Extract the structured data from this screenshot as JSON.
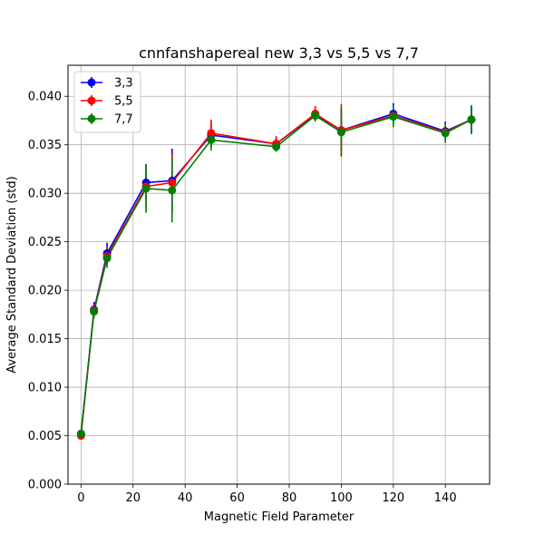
{
  "chart_data": {
    "type": "line",
    "title": "cnnfanshapereal new 3,3 vs 5,5 vs 7,7",
    "xlabel": "Magnetic Field Parameter",
    "ylabel": "Average Standard Deviation (std)",
    "xlim": [
      -5,
      157
    ],
    "ylim": [
      0.0,
      0.0432
    ],
    "x_ticks": [
      0,
      20,
      40,
      60,
      80,
      100,
      120,
      140
    ],
    "x_tick_labels": [
      "0",
      "20",
      "40",
      "60",
      "80",
      "100",
      "120",
      "140"
    ],
    "y_ticks": [
      0.0,
      0.005,
      0.01,
      0.015,
      0.02,
      0.025,
      0.03,
      0.035,
      0.04
    ],
    "y_tick_labels": [
      "0.000",
      "0.005",
      "0.010",
      "0.015",
      "0.020",
      "0.025",
      "0.030",
      "0.035",
      "0.040"
    ],
    "grid": true,
    "legend_position": "upper-left",
    "x": [
      0,
      5,
      10,
      25,
      35,
      50,
      75,
      90,
      100,
      120,
      140,
      150
    ],
    "series": [
      {
        "name": "3,3",
        "color": "#0000ff",
        "values": [
          0.0052,
          0.018,
          0.0238,
          0.0311,
          0.0313,
          0.036,
          0.0351,
          0.0381,
          0.0365,
          0.0382,
          0.0364,
          0.0376
        ],
        "errors": [
          0.0004,
          0.0008,
          0.0011,
          0.0019,
          0.0033,
          0.0012,
          0.0006,
          0.0006,
          0.0017,
          0.0011,
          0.001,
          0.0014
        ]
      },
      {
        "name": "5,5",
        "color": "#ff0000",
        "values": [
          0.005,
          0.0179,
          0.0235,
          0.0307,
          0.0311,
          0.0362,
          0.0351,
          0.0382,
          0.0365,
          0.038,
          0.0363,
          0.0376
        ],
        "errors": [
          0.0004,
          0.0007,
          0.001,
          0.0022,
          0.003,
          0.0014,
          0.0008,
          0.0008,
          0.0027,
          0.0009,
          0.0008,
          0.0013
        ]
      },
      {
        "name": "7,7",
        "color": "#008000",
        "values": [
          0.0052,
          0.0178,
          0.0233,
          0.0305,
          0.0303,
          0.0355,
          0.0348,
          0.038,
          0.0363,
          0.0379,
          0.0362,
          0.0376
        ],
        "errors": [
          0.0004,
          0.0007,
          0.001,
          0.0025,
          0.0033,
          0.0011,
          0.0005,
          0.0006,
          0.0025,
          0.0011,
          0.001,
          0.0015
        ]
      }
    ]
  }
}
